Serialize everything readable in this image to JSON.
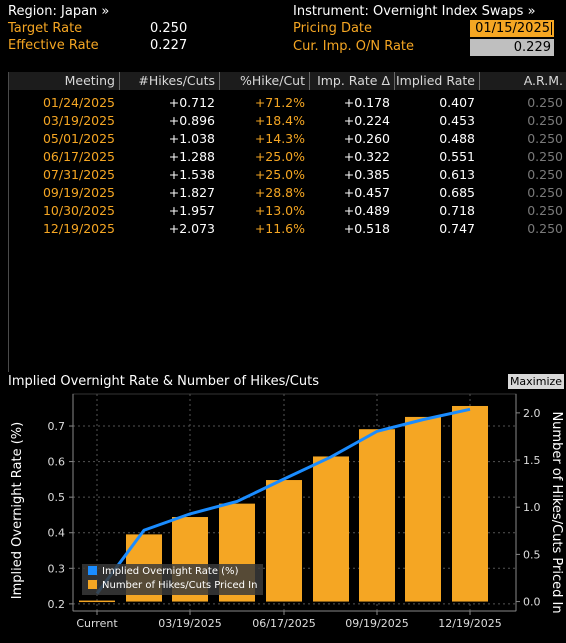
{
  "header": {
    "region": "Region: Japan »",
    "target_rate_label": "Target Rate",
    "target_rate_value": "0.250",
    "effective_rate_label": "Effective Rate",
    "effective_rate_value": "0.227",
    "instrument": "Instrument: Overnight Index Swaps »",
    "pricing_date_label": "Pricing Date",
    "pricing_date_value": "01/15/2025",
    "cur_imp_label": "Cur. Imp. O/N Rate",
    "cur_imp_value": "0.229"
  },
  "table": {
    "columns": [
      "Meeting",
      "#Hikes/Cuts",
      "%Hike/Cut",
      "Imp. Rate Δ",
      "Implied Rate",
      "A.R.M."
    ],
    "rows": [
      [
        "01/24/2025",
        "+0.712",
        "+71.2%",
        "+0.178",
        "0.407",
        "0.250"
      ],
      [
        "03/19/2025",
        "+0.896",
        "+18.4%",
        "+0.224",
        "0.453",
        "0.250"
      ],
      [
        "05/01/2025",
        "+1.038",
        "+14.3%",
        "+0.260",
        "0.488",
        "0.250"
      ],
      [
        "06/17/2025",
        "+1.288",
        "+25.0%",
        "+0.322",
        "0.551",
        "0.250"
      ],
      [
        "07/31/2025",
        "+1.538",
        "+25.0%",
        "+0.385",
        "0.613",
        "0.250"
      ],
      [
        "09/19/2025",
        "+1.827",
        "+28.8%",
        "+0.457",
        "0.685",
        "0.250"
      ],
      [
        "10/30/2025",
        "+1.957",
        "+13.0%",
        "+0.489",
        "0.718",
        "0.250"
      ],
      [
        "12/19/2025",
        "+2.073",
        "+11.6%",
        "+0.518",
        "0.747",
        "0.250"
      ]
    ]
  },
  "chart_panel": {
    "title": "Implied Overnight Rate & Number of Hikes/Cuts",
    "maximize_label": "Maximize"
  },
  "chart_data": {
    "type": "bar",
    "categories": [
      "Current",
      "01/24/2025",
      "03/19/2025",
      "05/01/2025",
      "06/17/2025",
      "07/31/2025",
      "09/19/2025",
      "10/30/2025",
      "12/19/2025"
    ],
    "x_tick_labels": [
      "Current",
      "03/19/2025",
      "06/17/2025",
      "09/19/2025",
      "12/19/2025"
    ],
    "series": [
      {
        "name": "Implied Overnight Rate (%)",
        "kind": "line",
        "axis": "left",
        "color": "#1a8cff",
        "values": [
          0.229,
          0.407,
          0.453,
          0.488,
          0.551,
          0.613,
          0.685,
          0.718,
          0.747
        ]
      },
      {
        "name": "Number of Hikes/Cuts Priced In",
        "kind": "bar",
        "axis": "right",
        "color": "#f5a623",
        "values": [
          0.0,
          0.712,
          0.896,
          1.038,
          1.288,
          1.538,
          1.827,
          1.957,
          2.073
        ]
      }
    ],
    "ylabel": "Implied Overnight Rate (%)",
    "y2label": "Number of Hikes/Cuts Priced In",
    "ylim": [
      0.18,
      0.79
    ],
    "y2lim": [
      -0.1,
      2.2
    ],
    "yticks": [
      "0.2",
      "0.3",
      "0.4",
      "0.5",
      "0.6",
      "0.7"
    ],
    "y2ticks": [
      "0.0",
      "0.5",
      "1.0",
      "1.5",
      "2.0"
    ],
    "legend_position": "bottom-left",
    "grid": true
  }
}
